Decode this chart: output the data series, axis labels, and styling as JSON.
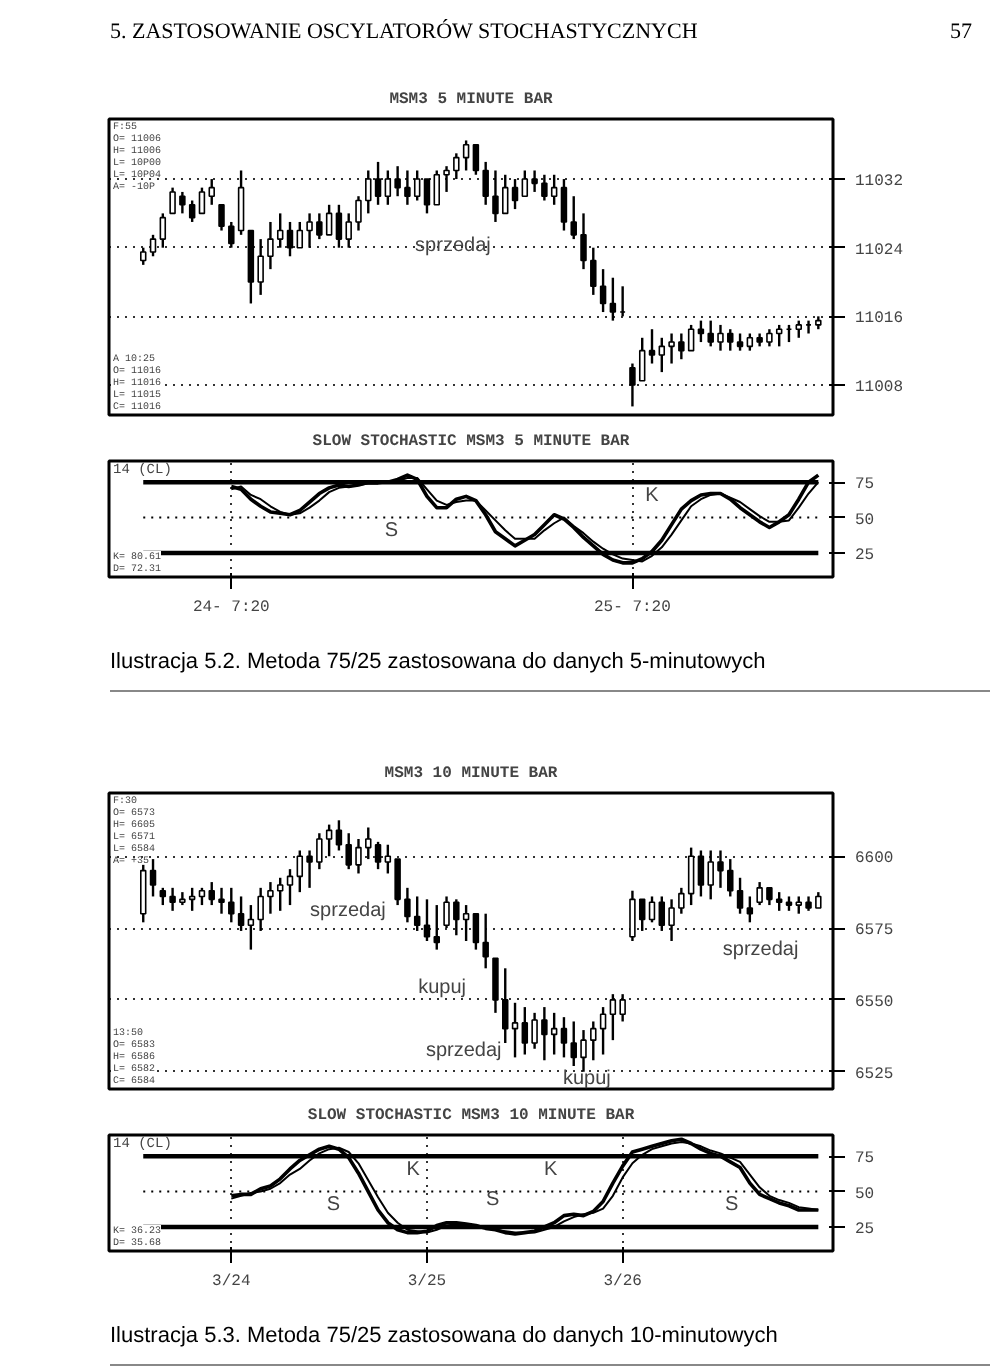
{
  "chart_data": [
    {
      "type": "candlestick",
      "title": "MSM3 5 MINUTE BAR",
      "categories": [
        null,
        null,
        null,
        null,
        null,
        null,
        null,
        null,
        null,
        null,
        null,
        null,
        null,
        null,
        null,
        null,
        null,
        null,
        null,
        null,
        null,
        null,
        null,
        null,
        null,
        null,
        null,
        null,
        null,
        null,
        null,
        null,
        null,
        null,
        null,
        null,
        null,
        null,
        null,
        null,
        null,
        null,
        null,
        null,
        null,
        null,
        null,
        null,
        null,
        null,
        null,
        null,
        null,
        null,
        null,
        null,
        null,
        null,
        null,
        null,
        null,
        null,
        null,
        null,
        null,
        null,
        null,
        null,
        null,
        null
      ],
      "ohlc": [
        [
          11022.5,
          11024,
          11022,
          11023.5
        ],
        [
          11023.5,
          11025.5,
          11023,
          11025
        ],
        [
          11025,
          11028,
          11024,
          11027.5
        ],
        [
          11028,
          11031,
          11028,
          11030.5
        ],
        [
          11030,
          11030.5,
          11028,
          11029
        ],
        [
          11029,
          11029.5,
          11027,
          11027.5
        ],
        [
          11028,
          11031,
          11028,
          11030.5
        ],
        [
          11030,
          11032,
          11029,
          11031
        ],
        [
          11029,
          11029,
          11026,
          11026.5
        ],
        [
          11026.5,
          11027,
          11024,
          11024.5
        ],
        [
          11026,
          11033,
          11025.5,
          11031
        ],
        [
          11026,
          11026,
          11017.5,
          11020
        ],
        [
          11020,
          11025,
          11018.5,
          11023
        ],
        [
          11023,
          11027,
          11021.5,
          11025
        ],
        [
          11025,
          11028,
          11024,
          11026
        ],
        [
          11026,
          11027,
          11023,
          11024
        ],
        [
          11024,
          11027,
          11024,
          11026
        ],
        [
          11026,
          11028,
          11024,
          11027
        ],
        [
          11027,
          11028,
          11025,
          11025.5
        ],
        [
          11025.5,
          11029,
          11025.5,
          11028
        ],
        [
          11028,
          11029,
          11024,
          11025
        ],
        [
          11025,
          11028,
          11024,
          11027
        ],
        [
          11027,
          11030,
          11026,
          11029.5
        ],
        [
          11029.5,
          11033,
          11028,
          11032
        ],
        [
          11032,
          11034,
          11029,
          11030
        ],
        [
          11030,
          11033,
          11029,
          11032
        ],
        [
          11032,
          11033.5,
          11030,
          11031
        ],
        [
          11031,
          11033,
          11029,
          11030
        ],
        [
          11030,
          11033,
          11029.5,
          11032
        ],
        [
          11032,
          11032,
          11028,
          11029
        ],
        [
          11029,
          11033,
          11029,
          11032.5
        ],
        [
          11032.5,
          11033.5,
          11030.5,
          11033
        ],
        [
          11033,
          11035,
          11032,
          11034.5
        ],
        [
          11034.5,
          11036.5,
          11033,
          11036
        ],
        [
          11036,
          11036,
          11032.5,
          11033
        ],
        [
          11033,
          11034,
          11029,
          11030
        ],
        [
          11030,
          11033,
          11027,
          11028
        ],
        [
          11028,
          11032.5,
          11028,
          11031
        ],
        [
          11031,
          11032,
          11028.5,
          11029.5
        ],
        [
          11030,
          11033,
          11030,
          11032
        ],
        [
          11032,
          11033,
          11030.5,
          11031.5
        ],
        [
          11031.5,
          11032.5,
          11029.5,
          11030
        ],
        [
          11030,
          11032.5,
          11029,
          11031
        ],
        [
          11031,
          11032,
          11026,
          11027
        ],
        [
          11027,
          11030,
          11025,
          11025.5
        ],
        [
          11025.5,
          11028,
          11021.5,
          11022.5
        ],
        [
          11022.5,
          11024,
          11018.5,
          11019.5
        ],
        [
          11019.5,
          11021.5,
          11016.5,
          11017.5
        ],
        [
          11017.5,
          11020.5,
          11015.5,
          11016.5
        ],
        [
          11016.5,
          11019.5,
          11016,
          11016.5
        ],
        [
          11010,
          11010.5,
          11005.5,
          11008
        ],
        [
          11008.5,
          11013.5,
          11008.5,
          11012
        ],
        [
          11012,
          11014.5,
          11010.5,
          11011.5
        ],
        [
          11011.5,
          11013.5,
          11009.5,
          11012.5
        ],
        [
          11012.5,
          11014,
          11010.5,
          11013
        ],
        [
          11013,
          11014,
          11011,
          11012
        ],
        [
          11012,
          11015,
          11012,
          11014.5
        ],
        [
          11014.5,
          11015.5,
          11013,
          11014
        ],
        [
          11014,
          11015.5,
          11012.5,
          11013
        ],
        [
          11013,
          11015,
          11012,
          11014
        ],
        [
          11014,
          11014.5,
          11012,
          11013
        ],
        [
          11013,
          11014,
          11012,
          11012.5
        ],
        [
          11012.5,
          11014,
          11012,
          11013.5
        ],
        [
          11013.5,
          11014,
          11012.5,
          11013
        ],
        [
          11013,
          11014.5,
          11012.5,
          11014
        ],
        [
          11014,
          11015,
          11012.5,
          11014.5
        ],
        [
          11014.5,
          11015,
          11013,
          11014.5
        ],
        [
          11014.5,
          11015.5,
          11013.5,
          11015
        ],
        [
          11015,
          11015.5,
          11014,
          11015
        ],
        [
          11015,
          11016,
          11014.5,
          11015.5
        ]
      ],
      "ylim": [
        11004.5,
        11039
      ],
      "yticks": [
        11032,
        11024,
        11016,
        11008
      ],
      "grid": "y",
      "tick_labels": "y",
      "annotations": [
        "5. ZASTOSOWANIE OSCYLATORÓW STOCHASTYCZNYCH",
        "57",
        "F:55\nO= 11006\nH= 11006\nL= 10P00\nL= 10P04\nA= -10P",
        "A 10:25\nO= 11016\nH= 11016\nL= 11015\nC= 11016",
        "sprzedaj"
      ]
    },
    {
      "type": "line",
      "title": "SLOW STOCHASTIC MSM3 5 MINUTE BAR",
      "categories": [
        null,
        null,
        null,
        null,
        null,
        null,
        null,
        null,
        null,
        "24- 7:20",
        null,
        null,
        null,
        null,
        null,
        null,
        null,
        null,
        null,
        null,
        null,
        null,
        null,
        null,
        null,
        null,
        null,
        null,
        null,
        null,
        null,
        null,
        null,
        null,
        null,
        null,
        null,
        null,
        null,
        null,
        null,
        null,
        null,
        null,
        null,
        null,
        null,
        null,
        null,
        null,
        "25- 7:20",
        null,
        null,
        null,
        null,
        null,
        null,
        null,
        null,
        null,
        null,
        null,
        null,
        null,
        null,
        null,
        null,
        null,
        null,
        null
      ],
      "series": [
        {
          "color": "#000000",
          "values": [
            null,
            null,
            null,
            null,
            null,
            null,
            null,
            null,
            null,
            72,
            70,
            63,
            58,
            54,
            53,
            52,
            55,
            61,
            67,
            71,
            73,
            72,
            73,
            75,
            75,
            75,
            77,
            80,
            77,
            65,
            57,
            57,
            63,
            65,
            62,
            52,
            40,
            35,
            30,
            34,
            38,
            45,
            52,
            49,
            43,
            36,
            30,
            24,
            20,
            18,
            18,
            21,
            26,
            34,
            45,
            56,
            62,
            66,
            67,
            67,
            63,
            57,
            52,
            47,
            43,
            47,
            52,
            63,
            75,
            80
          ]
        },
        {
          "color": "#000000",
          "values": [
            null,
            null,
            null,
            null,
            null,
            null,
            null,
            null,
            null,
            70,
            72,
            66,
            63,
            58,
            54,
            52,
            53,
            57,
            62,
            68,
            71,
            72,
            73,
            74,
            74,
            75,
            76,
            78,
            78,
            70,
            62,
            59,
            61,
            62,
            62,
            55,
            48,
            41,
            35,
            35,
            35,
            41,
            46,
            50,
            44,
            39,
            33,
            28,
            24,
            21,
            20,
            19,
            23,
            29,
            38,
            48,
            58,
            63,
            66,
            67,
            64,
            61,
            56,
            51,
            47,
            47,
            48,
            57,
            67,
            75
          ]
        }
      ],
      "ylim": [
        8,
        90
      ],
      "yticks": [
        25,
        50,
        75
      ],
      "grid": "x",
      "ref_lines": [
        {
          "axis": "y",
          "value": 75
        },
        {
          "axis": "y",
          "value": 50,
          "line_style": "dotted"
        },
        {
          "axis": "y",
          "value": 25
        }
      ],
      "annotations": [
        "14 (CL)",
        "K= 80.61\nD= 72.31",
        "Ilustracja 5.2. Metoda 75/25 zastosowana do danych 5-minutowych",
        "S",
        "K"
      ]
    },
    {
      "type": "candlestick",
      "title": "MSM3 10 MINUTE BAR",
      "categories": [
        null,
        null,
        null,
        null,
        null,
        null,
        null,
        null,
        null,
        null,
        null,
        null,
        null,
        null,
        null,
        null,
        null,
        null,
        null,
        null,
        null,
        null,
        null,
        null,
        null,
        null,
        null,
        null,
        null,
        null,
        null,
        null,
        null,
        null,
        null,
        null,
        null,
        null,
        null,
        null,
        null,
        null,
        null,
        null,
        null,
        null,
        null,
        null,
        null,
        null,
        null,
        null,
        null,
        null,
        null,
        null,
        null,
        null,
        null,
        null,
        null,
        null,
        null,
        null,
        null,
        null,
        null,
        null,
        null,
        null
      ],
      "ohlc": [
        [
          6580,
          6597,
          6577,
          6595
        ],
        [
          6595,
          6599,
          6586,
          6590
        ],
        [
          6588,
          6589,
          6583,
          6586
        ],
        [
          6586,
          6589,
          6581,
          6584
        ],
        [
          6584,
          6587.5,
          6583,
          6585
        ],
        [
          6585,
          6589,
          6581,
          6586
        ],
        [
          6586,
          6589,
          6583,
          6588
        ],
        [
          6588,
          6591,
          6583,
          6585
        ],
        [
          6585,
          6589,
          6580,
          6584
        ],
        [
          6584,
          6589,
          6577,
          6580
        ],
        [
          6580,
          6586,
          6574,
          6576
        ],
        [
          6576,
          6583,
          6567.5,
          6578
        ],
        [
          6578,
          6589,
          6574,
          6586
        ],
        [
          6586,
          6591,
          6580,
          6588
        ],
        [
          6588,
          6592.5,
          6581,
          6590
        ],
        [
          6590,
          6595.5,
          6583,
          6593
        ],
        [
          6593,
          6602,
          6587.5,
          6600
        ],
        [
          6600,
          6602,
          6589,
          6598
        ],
        [
          6598,
          6608,
          6595.5,
          6606
        ],
        [
          6606,
          6611,
          6600,
          6609
        ],
        [
          6609,
          6612.5,
          6602,
          6604
        ],
        [
          6604,
          6608,
          6595.5,
          6597
        ],
        [
          6597,
          6606,
          6594,
          6603
        ],
        [
          6603,
          6610,
          6599,
          6606
        ],
        [
          6604,
          6605,
          6595.5,
          6598
        ],
        [
          6598,
          6604,
          6594,
          6600
        ],
        [
          6599,
          6599,
          6583,
          6585
        ],
        [
          6585,
          6589,
          6577,
          6579
        ],
        [
          6579,
          6586,
          6574,
          6576
        ],
        [
          6576,
          6585,
          6570.5,
          6572
        ],
        [
          6572,
          6583,
          6567.5,
          6570
        ],
        [
          6576,
          6586,
          6575,
          6584
        ],
        [
          6584,
          6585,
          6572.5,
          6578
        ],
        [
          6578,
          6583,
          6570.5,
          6580
        ],
        [
          6580,
          6580,
          6567.5,
          6570
        ],
        [
          6570,
          6580,
          6561,
          6565
        ],
        [
          6564.5,
          6564.5,
          6545.5,
          6550
        ],
        [
          6550,
          6561,
          6535,
          6540
        ],
        [
          6540,
          6549,
          6530,
          6542
        ],
        [
          6542,
          6547.5,
          6531,
          6535
        ],
        [
          6535,
          6545.5,
          6533,
          6543
        ],
        [
          6543,
          6547.5,
          6529,
          6538
        ],
        [
          6538,
          6545.5,
          6531,
          6540
        ],
        [
          6540,
          6544,
          6530,
          6535
        ],
        [
          6535,
          6542.5,
          6527,
          6530
        ],
        [
          6530,
          6539.5,
          6525,
          6536
        ],
        [
          6536,
          6542.5,
          6529,
          6540
        ],
        [
          6540,
          6547.5,
          6531,
          6545
        ],
        [
          6545,
          6552,
          6536,
          6550
        ],
        [
          6545,
          6552,
          6542.5,
          6550
        ],
        [
          6572,
          6588,
          6570.5,
          6585
        ],
        [
          6585,
          6585,
          6574,
          6578
        ],
        [
          6578,
          6586,
          6577,
          6584
        ],
        [
          6584,
          6586,
          6574,
          6576
        ],
        [
          6576,
          6585,
          6570.5,
          6582
        ],
        [
          6582,
          6589,
          6580,
          6587
        ],
        [
          6587,
          6603,
          6583,
          6600
        ],
        [
          6600,
          6602,
          6586,
          6590
        ],
        [
          6590,
          6602,
          6585,
          6598
        ],
        [
          6598,
          6602,
          6589,
          6595
        ],
        [
          6595,
          6599,
          6586,
          6588
        ],
        [
          6588,
          6592.5,
          6580,
          6582
        ],
        [
          6582,
          6586,
          6577,
          6580
        ],
        [
          6584,
          6591,
          6583,
          6589
        ],
        [
          6589,
          6589,
          6583,
          6585
        ],
        [
          6585,
          6587.5,
          6581,
          6584
        ],
        [
          6584,
          6586,
          6581,
          6583
        ],
        [
          6583,
          6586,
          6580,
          6584
        ],
        [
          6584,
          6586,
          6581,
          6582
        ],
        [
          6582,
          6587.5,
          6582,
          6586
        ]
      ],
      "ylim": [
        6519,
        6622
      ],
      "yticks": [
        6600,
        6575,
        6550,
        6525
      ],
      "grid": "y",
      "tick_labels": "y",
      "annotations": [
        "F:30\nO= 6573\nH= 6605\nL= 6571\nL= 6584\nA= +35",
        "13:50\nO= 6583\nH= 6586\nL= 6582\nC= 6584",
        "sprzedaj",
        "kupuj",
        "sprzedaj",
        "kupuj",
        "sprzedaj"
      ]
    },
    {
      "type": "line",
      "title": "SLOW STOCHASTIC MSM3 10 MINUTE BAR",
      "categories": [
        null,
        null,
        null,
        null,
        null,
        null,
        null,
        null,
        null,
        "3/24",
        null,
        null,
        null,
        null,
        null,
        null,
        null,
        null,
        null,
        null,
        null,
        null,
        null,
        null,
        null,
        null,
        null,
        null,
        null,
        "3/25",
        null,
        null,
        null,
        null,
        null,
        null,
        null,
        null,
        null,
        null,
        null,
        null,
        null,
        null,
        null,
        null,
        null,
        null,
        null,
        "3/26",
        null,
        null,
        null,
        null,
        null,
        null,
        null,
        null,
        null,
        null,
        null,
        null,
        null,
        null,
        null,
        null,
        null,
        null,
        null,
        null
      ],
      "series": [
        {
          "color": "#000000",
          "values": [
            null,
            null,
            null,
            null,
            null,
            null,
            null,
            null,
            null,
            47,
            48,
            48,
            52,
            54,
            59,
            66,
            72,
            76,
            80,
            82,
            80,
            74,
            63,
            50,
            37,
            28,
            23,
            21,
            21,
            22,
            26,
            28,
            28,
            27,
            26,
            24,
            23,
            21,
            20,
            21,
            22,
            25,
            28,
            33,
            34,
            33,
            36,
            43,
            56,
            68,
            78,
            80,
            82,
            84,
            86,
            87,
            84,
            80,
            77,
            75,
            71,
            67,
            56,
            48,
            45,
            42,
            40,
            37,
            37,
            37
          ]
        },
        {
          "color": "#000000",
          "values": [
            null,
            null,
            null,
            null,
            null,
            null,
            null,
            null,
            null,
            45,
            47,
            49,
            50,
            52,
            56,
            62,
            66,
            72,
            77,
            80,
            81,
            78,
            70,
            58,
            46,
            35,
            28,
            23,
            22,
            21,
            23,
            26,
            27,
            27,
            26,
            25,
            23,
            22,
            21,
            21,
            21,
            23,
            25,
            29,
            32,
            34,
            35,
            38,
            47,
            60,
            70,
            76,
            80,
            82,
            84,
            85,
            84,
            82,
            79,
            77,
            74,
            71,
            62,
            53,
            47,
            44,
            42,
            39,
            38,
            37
          ]
        }
      ],
      "ylim": [
        8,
        90
      ],
      "yticks": [
        25,
        50,
        75
      ],
      "grid": "x",
      "ref_lines": [
        {
          "axis": "y",
          "value": 75
        },
        {
          "axis": "y",
          "value": 50,
          "line_style": "dotted"
        },
        {
          "axis": "y",
          "value": 25
        }
      ],
      "annotations": [
        "14 (CL)",
        "K= 36.23\nD= 35.68",
        "Ilustracja 5.3. Metoda 75/25 zastosowana do danych 10-minutowych",
        "S",
        "K",
        "S",
        "K",
        "S"
      ]
    }
  ]
}
